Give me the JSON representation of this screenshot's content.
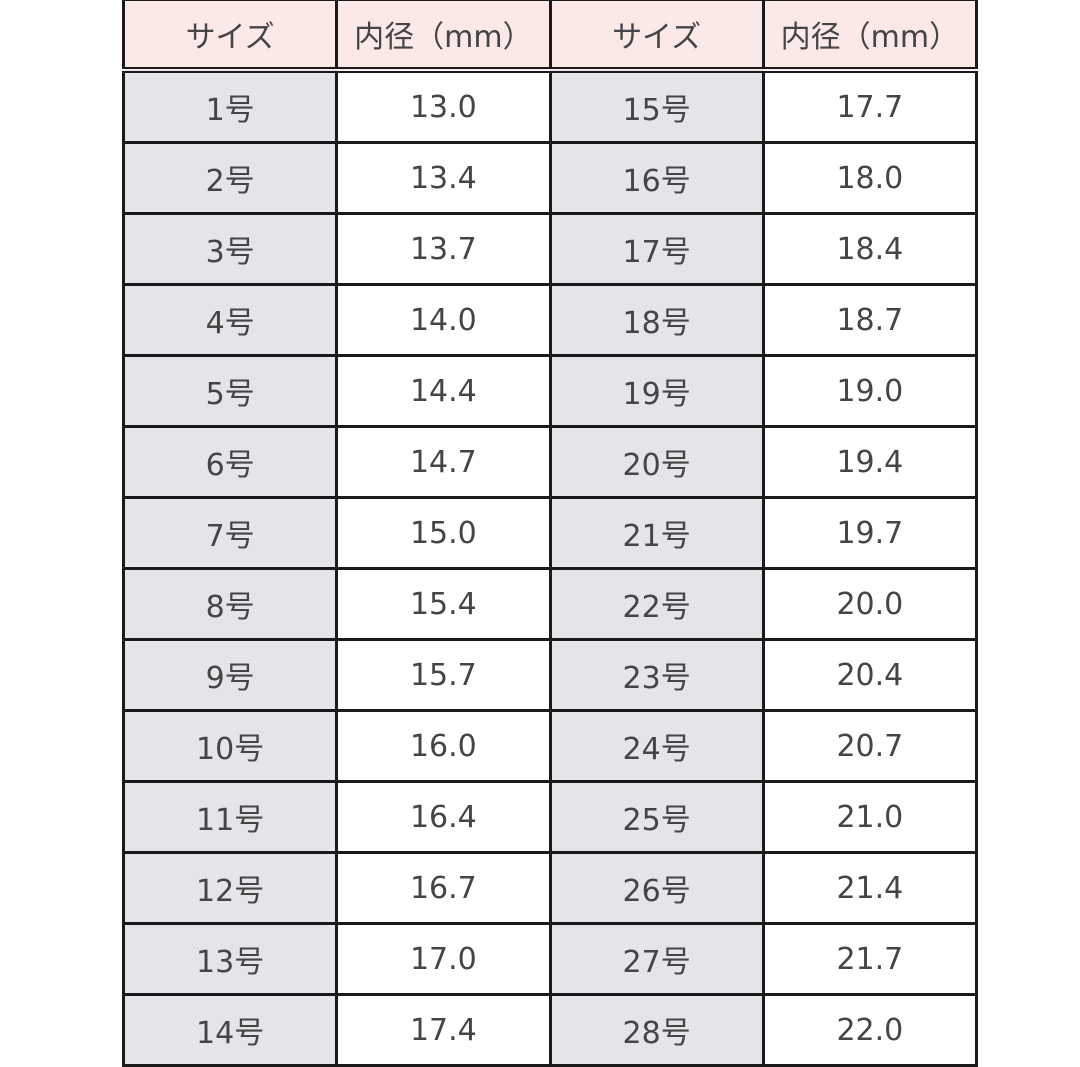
{
  "header": [
    "サイズ",
    "内径（mm）",
    "サイズ",
    "内径（mm）"
  ],
  "colors": {
    "header_bg": "#fbe9e8",
    "size_col_bg": "#e6e4e9",
    "border": "#1a1a1a"
  },
  "rows": [
    [
      "1号",
      "13.0",
      "15号",
      "17.7"
    ],
    [
      "2号",
      "13.4",
      "16号",
      "18.0"
    ],
    [
      "3号",
      "13.7",
      "17号",
      "18.4"
    ],
    [
      "4号",
      "14.0",
      "18号",
      "18.7"
    ],
    [
      "5号",
      "14.4",
      "19号",
      "19.0"
    ],
    [
      "6号",
      "14.7",
      "20号",
      "19.4"
    ],
    [
      "7号",
      "15.0",
      "21号",
      "19.7"
    ],
    [
      "8号",
      "15.4",
      "22号",
      "20.0"
    ],
    [
      "9号",
      "15.7",
      "23号",
      "20.4"
    ],
    [
      "10号",
      "16.0",
      "24号",
      "20.7"
    ],
    [
      "11号",
      "16.4",
      "25号",
      "21.0"
    ],
    [
      "12号",
      "16.7",
      "26号",
      "21.4"
    ],
    [
      "13号",
      "17.0",
      "27号",
      "21.7"
    ],
    [
      "14号",
      "17.4",
      "28号",
      "22.0"
    ]
  ]
}
